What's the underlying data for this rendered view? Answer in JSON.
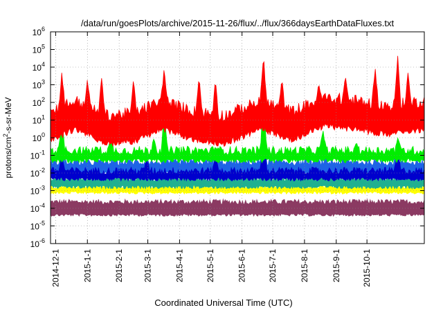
{
  "chart_data": {
    "type": "line",
    "title": "/data/run/goesPlots/archive/2015-11-26/flux/../flux/366daysEarthDataFluxes.txt",
    "xlabel": "Coordinated Universal Time (UTC)",
    "ylabel": "protons/cm2-s-sr-MeV",
    "ylabel_parts": {
      "prefix": "protons/cm",
      "sup": "2",
      "suffix": "-s-sr-MeV"
    },
    "x_range": [
      "2014-11-26",
      "2015-11-26"
    ],
    "y_scale": "log",
    "ylim": [
      1e-06,
      1000000.0
    ],
    "grid": true,
    "x_ticks": [
      {
        "label": "2014-12-1",
        "date": "2014-12-01"
      },
      {
        "label": "2015-1-1",
        "date": "2015-01-01"
      },
      {
        "label": "2015-2-1",
        "date": "2015-02-01"
      },
      {
        "label": "2015-3-1",
        "date": "2015-03-01"
      },
      {
        "label": "2015-4-1",
        "date": "2015-04-01"
      },
      {
        "label": "2015-5-1",
        "date": "2015-05-01"
      },
      {
        "label": "2015-6-1",
        "date": "2015-06-01"
      },
      {
        "label": "2015-7-1",
        "date": "2015-07-01"
      },
      {
        "label": "2015-8-1",
        "date": "2015-08-01"
      },
      {
        "label": "2015-9-1",
        "date": "2015-09-01"
      },
      {
        "label": "2015-10-1",
        "date": "2015-10-01"
      }
    ],
    "y_ticks": [
      {
        "base": "10",
        "exp": "6",
        "value": 1000000.0
      },
      {
        "base": "10",
        "exp": "5",
        "value": 100000.0
      },
      {
        "base": "10",
        "exp": "4",
        "value": 10000.0
      },
      {
        "base": "10",
        "exp": "3",
        "value": 1000.0
      },
      {
        "base": "10",
        "exp": "2",
        "value": 100.0
      },
      {
        "base": "10",
        "exp": "1",
        "value": 10.0
      },
      {
        "base": "10",
        "exp": "0",
        "value": 1
      },
      {
        "base": "10",
        "exp": "-1",
        "value": 0.1
      },
      {
        "base": "10",
        "exp": "-2",
        "value": 0.01
      },
      {
        "base": "10",
        "exp": "-3",
        "value": 0.001
      },
      {
        "base": "10",
        "exp": "-4",
        "value": 0.0001
      },
      {
        "base": "10",
        "exp": "-5",
        "value": 1e-05
      },
      {
        "base": "10",
        "exp": "-6",
        "value": 1e-06
      }
    ],
    "series": [
      {
        "color": "#8b3a62",
        "base_points": [
          [
            "2014-11-26",
            0.0001
          ],
          [
            "2015-04-01",
            0.0001
          ],
          [
            "2015-08-01",
            0.0001
          ],
          [
            "2015-11-26",
            0.0001
          ]
        ],
        "band_decades": 0.6,
        "jitter_decades": 0.15,
        "spikes": []
      },
      {
        "color": "#ffff00",
        "base_points": [
          [
            "2014-11-26",
            0.0012
          ],
          [
            "2015-06-01",
            0.0012
          ],
          [
            "2015-11-26",
            0.0012
          ]
        ],
        "band_decades": 0.25,
        "jitter_decades": 0.15,
        "spikes": []
      },
      {
        "color": "#20b090",
        "base_points": [
          [
            "2014-11-26",
            0.003
          ],
          [
            "2015-06-01",
            0.003
          ],
          [
            "2015-11-26",
            0.003
          ]
        ],
        "band_decades": 0.35,
        "jitter_decades": 0.2,
        "spikes": [
          [
            "2015-06-22",
            0.2
          ],
          [
            "2015-10-31",
            0.003
          ]
        ]
      },
      {
        "color": "#1e64e6",
        "base_points": [
          [
            "2014-11-26",
            0.02
          ],
          [
            "2015-06-01",
            0.02
          ],
          [
            "2015-11-26",
            0.02
          ]
        ],
        "band_decades": 0.45,
        "jitter_decades": 0.2,
        "spikes": [
          [
            "2014-12-07",
            0.2
          ],
          [
            "2015-03-17",
            0.1
          ],
          [
            "2015-06-22",
            20.0
          ],
          [
            "2015-10-30",
            0.1
          ]
        ]
      },
      {
        "color": "#0000cd",
        "base_points": [
          [
            "2014-11-26",
            0.008
          ],
          [
            "2015-06-01",
            0.008
          ],
          [
            "2015-11-26",
            0.008
          ]
        ],
        "band_decades": 0.3,
        "jitter_decades": 0.2,
        "spikes": [
          [
            "2014-12-07",
            0.1
          ],
          [
            "2015-02-28",
            0.08
          ],
          [
            "2015-05-06",
            0.1
          ],
          [
            "2015-06-22",
            5.0
          ],
          [
            "2015-10-31",
            0.2
          ]
        ]
      },
      {
        "color": "#00ee00",
        "base_points": [
          [
            "2014-11-26",
            0.1
          ],
          [
            "2015-06-01",
            0.1
          ],
          [
            "2015-11-26",
            0.1
          ]
        ],
        "band_decades": 0.35,
        "jitter_decades": 0.25,
        "spikes": [
          [
            "2014-12-07",
            30.0
          ],
          [
            "2015-01-10",
            0.3
          ],
          [
            "2015-01-24",
            1.0
          ],
          [
            "2015-03-07",
            1.0
          ],
          [
            "2015-03-17",
            30.0
          ],
          [
            "2015-05-06",
            0.3
          ],
          [
            "2015-06-22",
            1000.0
          ],
          [
            "2015-08-19",
            3.0
          ],
          [
            "2015-09-21",
            0.5
          ],
          [
            "2015-10-31",
            1.0
          ]
        ]
      },
      {
        "color": "#ff0000",
        "base_points": [
          [
            "2014-11-26",
            5.0
          ],
          [
            "2014-12-20",
            20.0
          ],
          [
            "2015-01-20",
            3.0
          ],
          [
            "2015-02-15",
            4.0
          ],
          [
            "2015-03-15",
            20.0
          ],
          [
            "2015-04-15",
            5.0
          ],
          [
            "2015-05-15",
            3.0
          ],
          [
            "2015-06-20",
            20.0
          ],
          [
            "2015-07-20",
            5.0
          ],
          [
            "2015-08-20",
            30.0
          ],
          [
            "2015-09-20",
            20.0
          ],
          [
            "2015-10-20",
            10.0
          ],
          [
            "2015-11-26",
            20.0
          ]
        ],
        "band_decades": 1.3,
        "jitter_decades": 0.35,
        "spikes": [
          [
            "2014-12-07",
            5000.0
          ],
          [
            "2015-01-01",
            2000.0
          ],
          [
            "2015-01-15",
            3000.0
          ],
          [
            "2015-02-15",
            2000.0
          ],
          [
            "2015-03-17",
            10000.0
          ],
          [
            "2015-04-20",
            3000.0
          ],
          [
            "2015-05-06",
            2000.0
          ],
          [
            "2015-06-22",
            50000.0
          ],
          [
            "2015-07-10",
            2000.0
          ],
          [
            "2015-08-15",
            1000.0
          ],
          [
            "2015-09-10",
            3000.0
          ],
          [
            "2015-10-09",
            10000.0
          ],
          [
            "2015-10-31",
            50000.0
          ],
          [
            "2015-11-10",
            5000.0
          ]
        ]
      }
    ]
  }
}
